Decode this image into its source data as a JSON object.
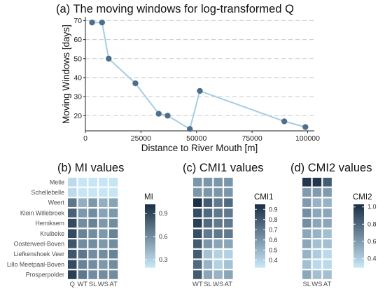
{
  "chart_data": [
    {
      "type": "line",
      "title": "(a) The moving windows for log-transformed Q",
      "xlabel": "Distance to River Mouth [m]",
      "ylabel": "Moving Windows [days]",
      "xlim": [
        0,
        103000
      ],
      "ylim": [
        12,
        72
      ],
      "xticks": [
        0,
        25000,
        50000,
        75000,
        100000
      ],
      "yticks": [
        20,
        30,
        40,
        50,
        60,
        70
      ],
      "grid": "horizontal dashed",
      "line_color": "#a6cde3",
      "point_color": "#4f6e8c",
      "x": [
        3000,
        7500,
        10500,
        22500,
        33000,
        37000,
        47000,
        51500,
        89500,
        99000
      ],
      "y": [
        69,
        69,
        50,
        37,
        21,
        20,
        13,
        33,
        17,
        14
      ]
    },
    {
      "type": "heatmap",
      "title": "(b) MI values",
      "rows": [
        "Melle",
        "Schellebelle",
        "Weert",
        "Klein Willebroek",
        "Hemiksem",
        "Kruibeke",
        "Oosterweel-Boven",
        "Liefkenshoek Veer",
        "Lillo Meetpaal-Boven",
        "Prosperpolder"
      ],
      "columns": [
        "Q",
        "WT",
        "SL",
        "WS",
        "AT"
      ],
      "legend_title": "MI",
      "legend_range": [
        0.2,
        1.02
      ],
      "legend_ticks": [
        "0.3",
        "0.6",
        "0.9"
      ],
      "color_low": "#c6e5f5",
      "color_high": "#1b3047",
      "values": [
        [
          0.25,
          0.2,
          0.2,
          0.2,
          0.2
        ],
        [
          0.25,
          0.2,
          0.2,
          0.2,
          0.2
        ],
        [
          0.7,
          0.45,
          0.55,
          0.45,
          0.5
        ],
        [
          0.8,
          0.55,
          0.6,
          0.5,
          0.55
        ],
        [
          0.9,
          0.6,
          0.65,
          0.55,
          0.6
        ],
        [
          0.9,
          0.65,
          0.6,
          0.55,
          0.65
        ],
        [
          0.85,
          0.6,
          0.6,
          0.55,
          0.6
        ],
        [
          0.85,
          0.7,
          0.6,
          0.6,
          0.65
        ],
        [
          0.9,
          0.65,
          0.6,
          0.55,
          0.6
        ],
        [
          0.95,
          0.7,
          0.6,
          0.6,
          0.6
        ]
      ]
    },
    {
      "type": "heatmap",
      "title": "(c) CMI1 values",
      "rows": [
        "Melle",
        "Schellebelle",
        "Weert",
        "Klein Willebroek",
        "Hemiksem",
        "Kruibeke",
        "Oosterweel-Boven",
        "Liefkenshoek Veer",
        "Lillo Meetpaal-Boven",
        "Prosperpolder"
      ],
      "columns": [
        "WT",
        "SL",
        "WS",
        "AT"
      ],
      "legend_title": "CMI1",
      "legend_range": [
        0.33,
        0.95
      ],
      "legend_ticks": [
        "0.4",
        "0.5",
        "0.6",
        "0.7",
        "0.8",
        "0.9"
      ],
      "color_low": "#c6e5f5",
      "color_high": "#1b3047",
      "values": [
        [
          0.6,
          0.6,
          0.6,
          0.6
        ],
        [
          0.6,
          0.6,
          0.6,
          0.6
        ],
        [
          0.95,
          0.8,
          0.7,
          0.75
        ],
        [
          0.85,
          0.75,
          0.7,
          0.7
        ],
        [
          0.9,
          0.75,
          0.7,
          0.7
        ],
        [
          0.85,
          0.7,
          0.7,
          0.7
        ],
        [
          0.8,
          0.6,
          0.55,
          0.55
        ],
        [
          0.8,
          0.45,
          0.4,
          0.4
        ],
        [
          0.75,
          0.5,
          0.4,
          0.45
        ],
        [
          0.8,
          0.55,
          0.5,
          0.55
        ]
      ]
    },
    {
      "type": "heatmap",
      "title": "(d) CMI2 values",
      "rows": [
        "Melle",
        "Schellebelle",
        "Weert",
        "Klein Willebroek",
        "Hemiksem",
        "Kruibeke",
        "Oosterweel-Boven",
        "Liefkenshoek Veer",
        "Lillo Meetpaal-Boven",
        "Prosperpolder"
      ],
      "columns": [
        "SL",
        "WS",
        "AT"
      ],
      "legend_title": "CMI2",
      "legend_range": [
        0.3,
        1.03
      ],
      "legend_ticks": [
        "0.4",
        "0.6",
        "0.8",
        "1.0"
      ],
      "color_low": "#c6e5f5",
      "color_high": "#1b3047",
      "values": [
        [
          1.0,
          1.0,
          0.85
        ],
        [
          0.6,
          0.6,
          0.6
        ],
        [
          0.6,
          0.5,
          0.5
        ],
        [
          0.65,
          0.55,
          0.55
        ],
        [
          0.65,
          0.55,
          0.55
        ],
        [
          0.55,
          0.5,
          0.45
        ],
        [
          0.55,
          0.45,
          0.45
        ],
        [
          0.5,
          0.4,
          0.35
        ],
        [
          0.45,
          0.35,
          0.35
        ],
        [
          0.55,
          0.45,
          0.45
        ]
      ]
    }
  ]
}
